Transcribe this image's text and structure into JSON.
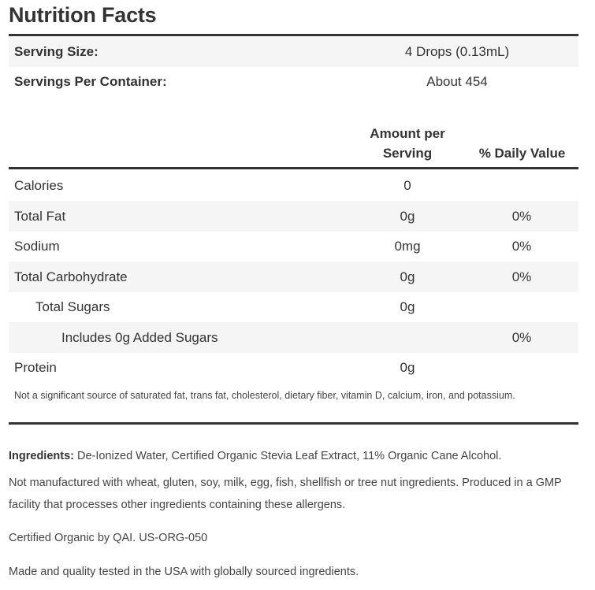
{
  "title": "Nutrition Facts",
  "serving": {
    "size_label": "Serving Size:",
    "size_value": "4 Drops (0.13mL)",
    "per_container_label": "Servings Per Container:",
    "per_container_value": "About 454"
  },
  "columns": {
    "amount_line1": "Amount per",
    "amount_line2": "Serving",
    "daily_value": "% Daily Value"
  },
  "nutrients": [
    {
      "label": "Calories",
      "amount": "0",
      "dv": ""
    },
    {
      "label": "Total Fat",
      "amount": "0g",
      "dv": "0%"
    },
    {
      "label": "Sodium",
      "amount": "0mg",
      "dv": "0%"
    },
    {
      "label": "Total Carbohydrate",
      "amount": "0g",
      "dv": "0%"
    },
    {
      "label": "Total Sugars",
      "amount": "0g",
      "dv": ""
    },
    {
      "label": "Includes 0g Added Sugars",
      "amount": "",
      "dv": "0%"
    },
    {
      "label": "Protein",
      "amount": "0g",
      "dv": ""
    }
  ],
  "footnote": "Not a significant source of saturated fat, trans fat, cholesterol, dietary fiber, vitamin D, calcium, iron, and potassium.",
  "ingredients": {
    "label": "Ingredients:",
    "text": " De-Ionized Water, Certified Organic Stevia Leaf Extract, 11% Organic Cane Alcohol."
  },
  "allergen_note": "Not manufactured with wheat, gluten, soy, milk, egg, fish, shellfish or tree nut ingredients. Produced in a GMP facility that processes other ingredients containing these allergens.",
  "certification": "Certified Organic by QAI. US-ORG-050",
  "origin": "Made and quality tested in the USA with globally sourced ingredients."
}
